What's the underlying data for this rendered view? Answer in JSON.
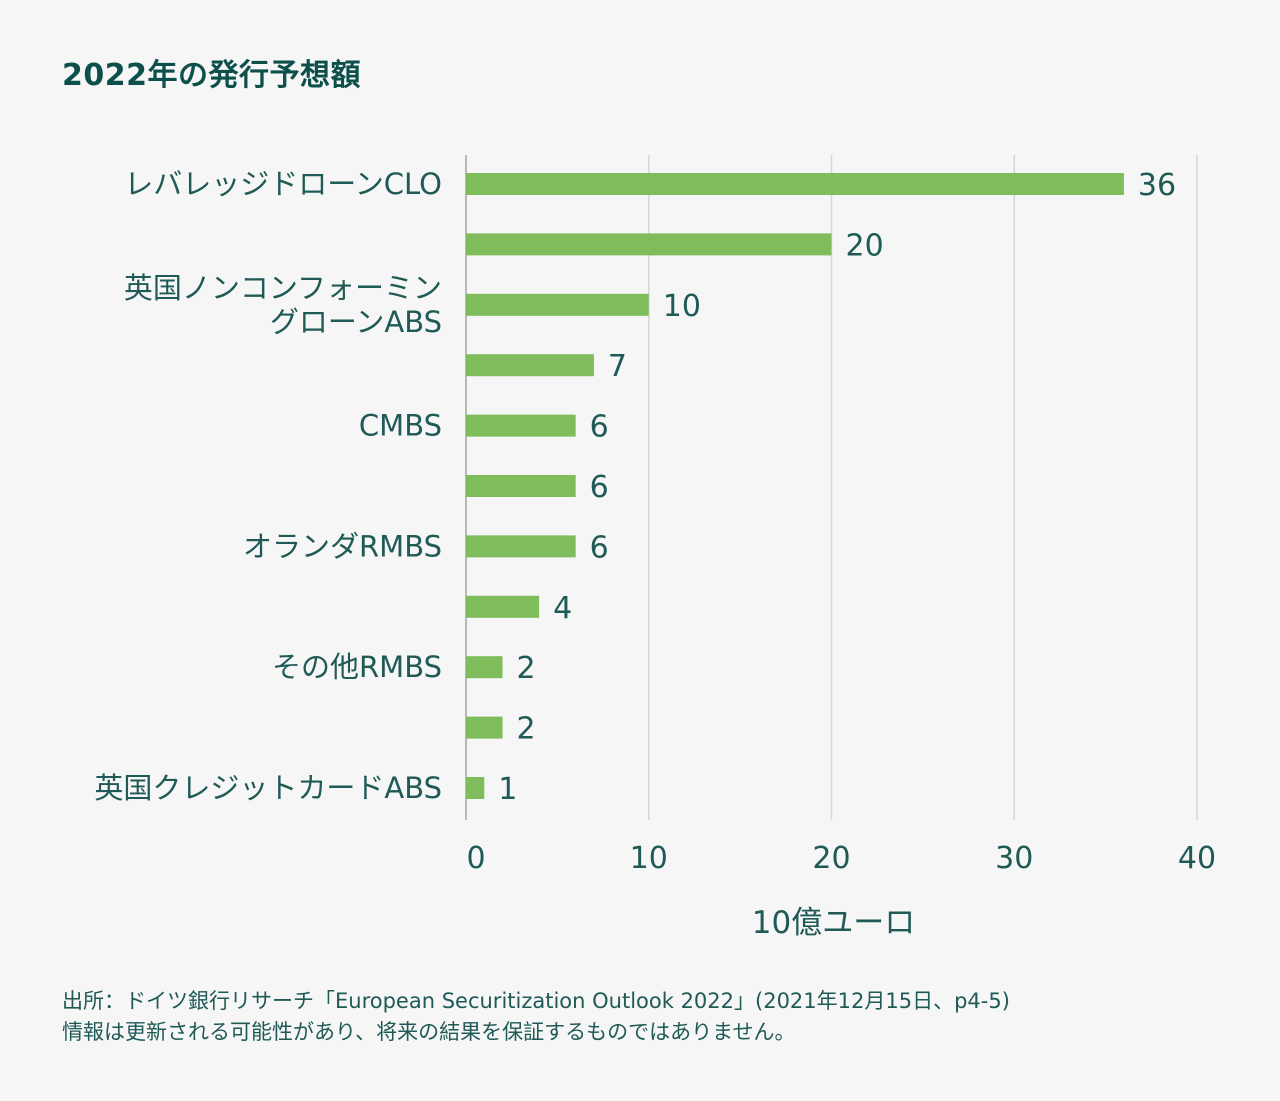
{
  "title": "2022年の発行予想額",
  "chart_data": {
    "type": "bar",
    "orientation": "horizontal",
    "categories": [
      "レバレッジドローンCLO",
      "",
      "英国ノンコンフォーミン\nグローンABS",
      "",
      "CMBS",
      "",
      "オランダRMBS",
      "",
      "その他RMBS",
      "",
      "英国クレジットカードABS"
    ],
    "values": [
      36,
      20,
      10,
      7,
      6,
      6,
      6,
      4,
      2,
      2,
      1
    ],
    "xlabel": "10億ユーロ",
    "xlim": [
      0,
      40
    ],
    "xticks": [
      0,
      10,
      20,
      30,
      40
    ],
    "grid": true,
    "bar_color": "#7fbc5c"
  },
  "footnote": {
    "source": "出所：ドイツ銀行リサーチ「European Securitization Outlook 2022」(2021年12月15日、p4-5)",
    "disclaimer": "情報は更新される可能性があり、将来の結果を保証するものではありません。"
  },
  "colors": {
    "text": "#1f5a56",
    "title": "#0d4f4a",
    "grid": "#d6d6d6",
    "axis": "#b8b8b8",
    "background": "#f6f6f6"
  }
}
